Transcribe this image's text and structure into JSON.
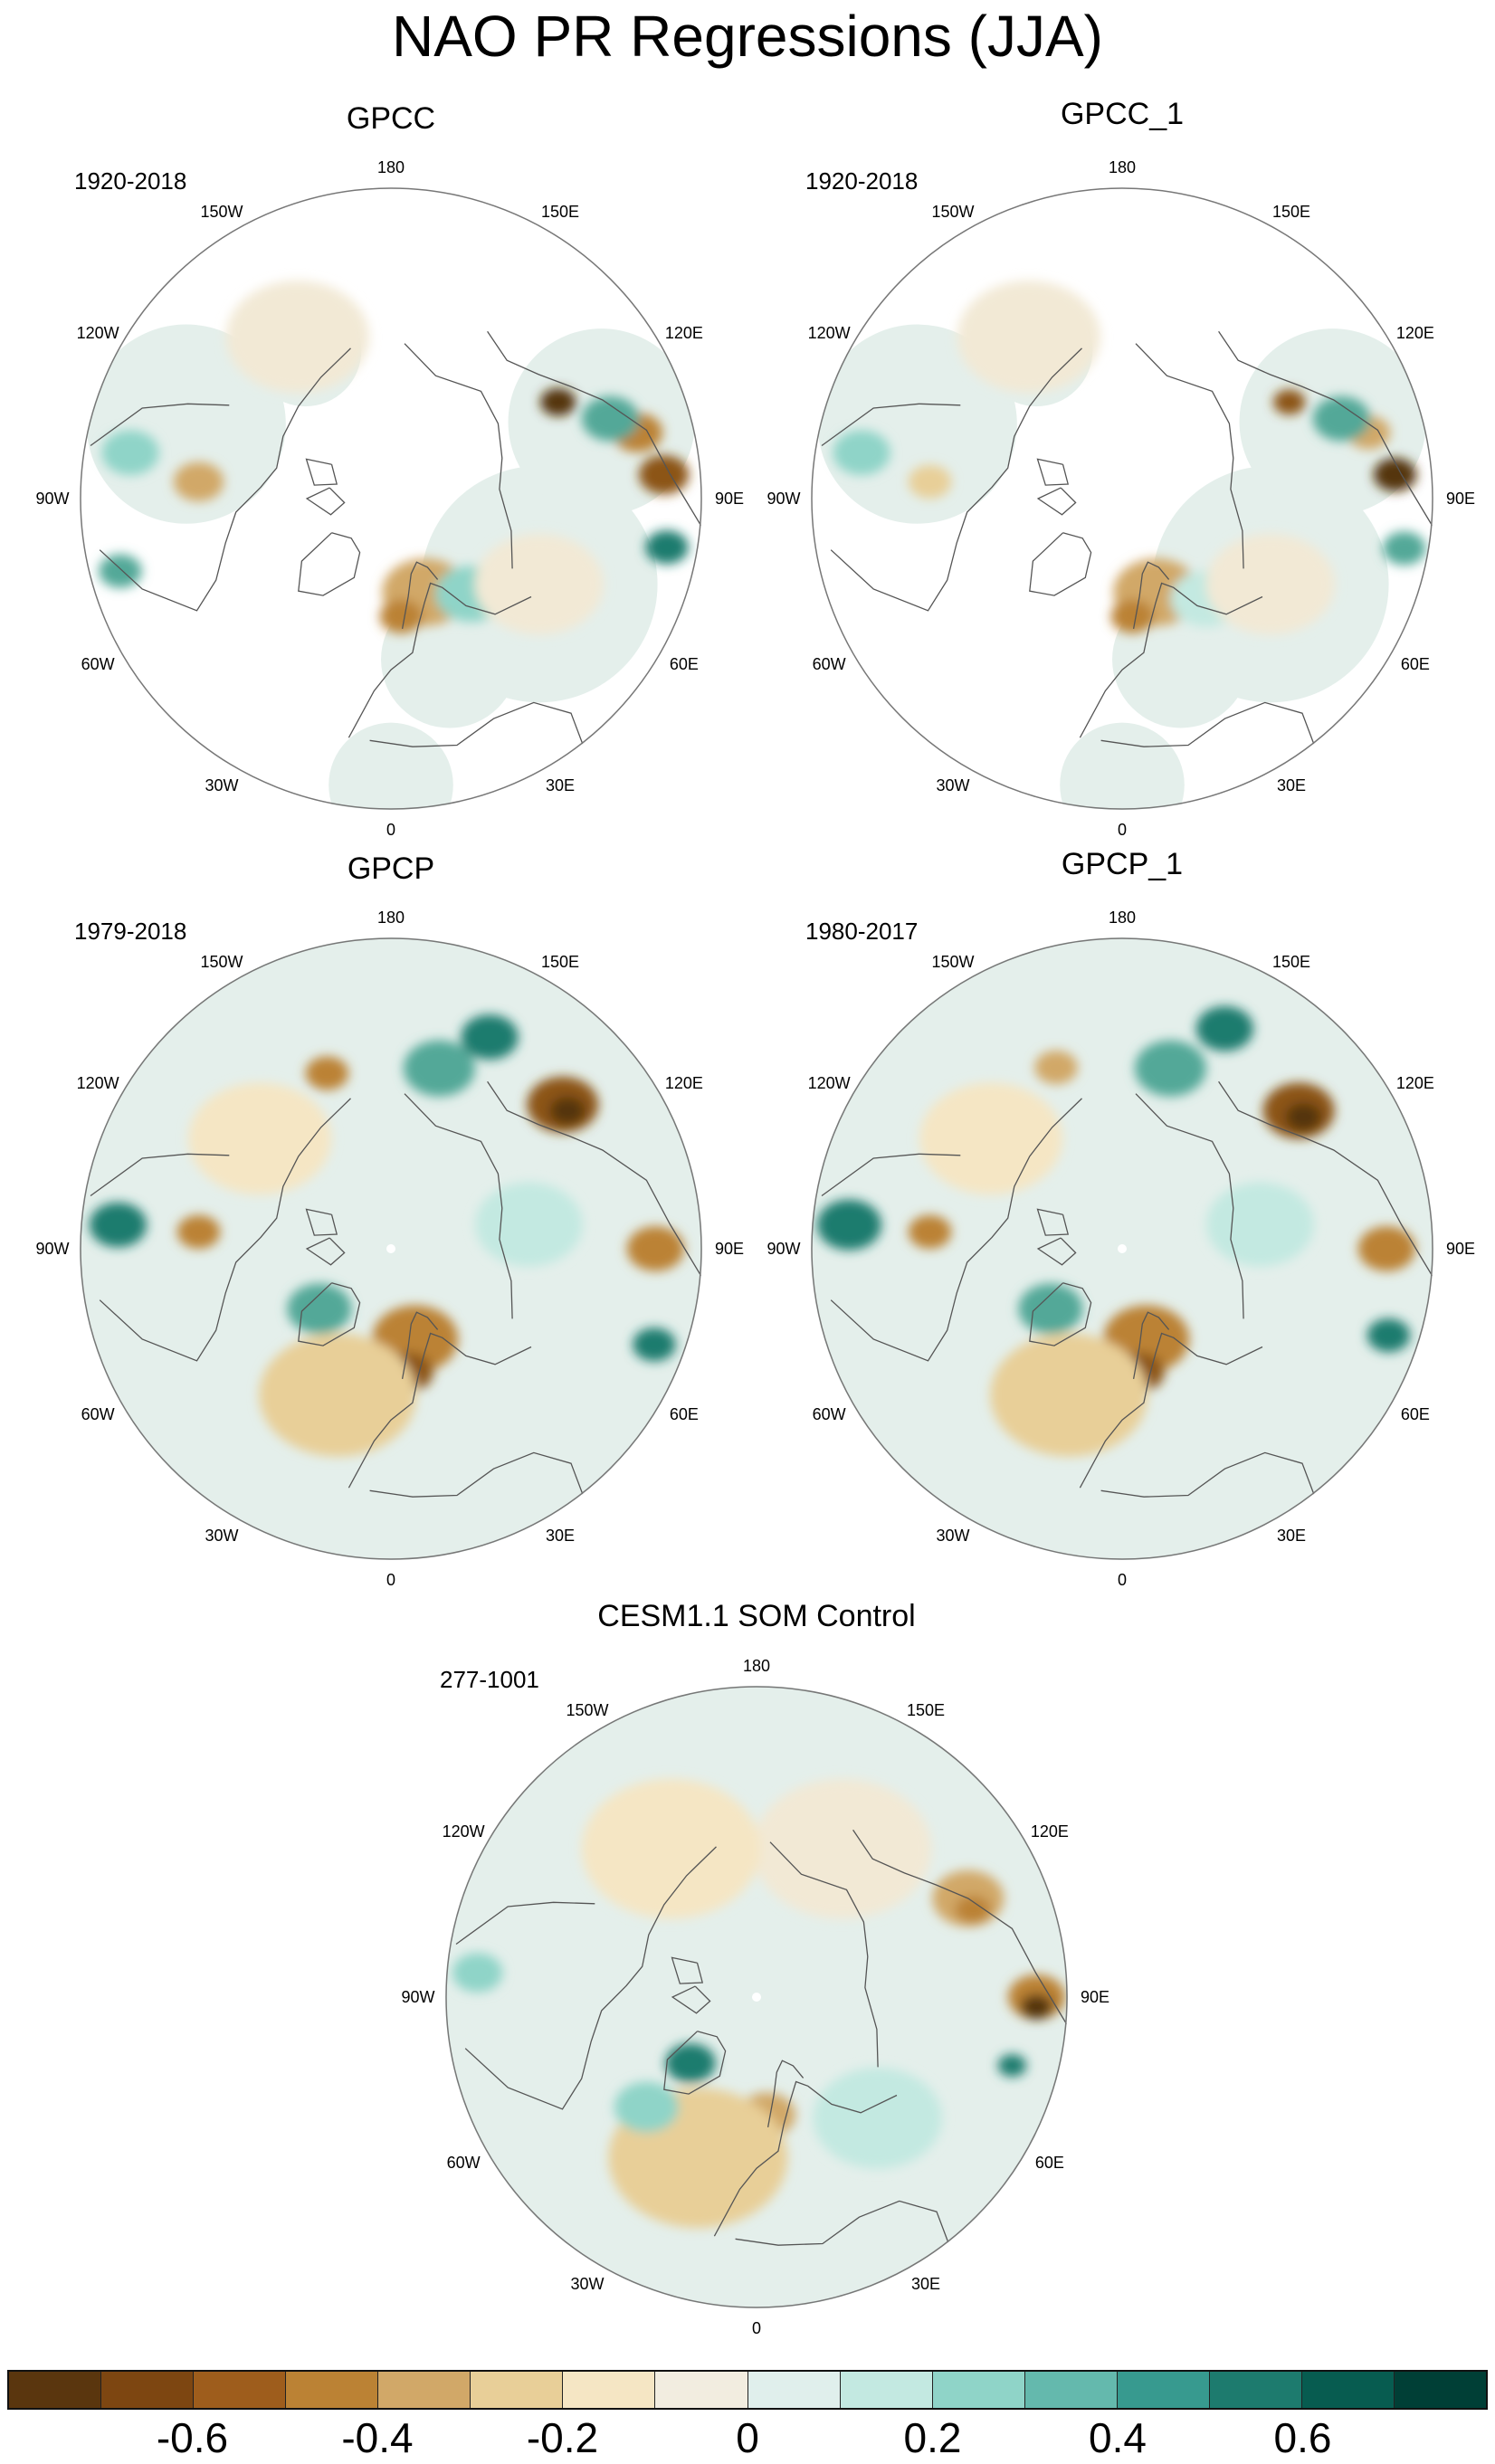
{
  "title": "NAO PR Regressions (JJA)",
  "lon_labels": [
    "180",
    "150E",
    "120E",
    "90E",
    "60E",
    "30E",
    "0",
    "30W",
    "60W",
    "90W",
    "120W",
    "150W"
  ],
  "panels": [
    {
      "title": "GPCC",
      "period": "1920-2018",
      "blobs": [
        {
          "lon": 120,
          "colat": 0.62,
          "r": 0.05,
          "color": "#553411"
        },
        {
          "lon": 95,
          "colat": 0.88,
          "r": 0.07,
          "color": "#8c5418"
        },
        {
          "lon": 105,
          "colat": 0.82,
          "r": 0.07,
          "color": "#bb8234"
        },
        {
          "lon": 110,
          "colat": 0.75,
          "r": 0.08,
          "color": "#52a898"
        },
        {
          "lon": 80,
          "colat": 0.9,
          "r": 0.06,
          "color": "#1d7b6e"
        },
        {
          "lon": 20,
          "colat": 0.32,
          "r": 0.12,
          "color": "#d1a868"
        },
        {
          "lon": 5,
          "colat": 0.38,
          "r": 0.06,
          "color": "#bb8234"
        },
        {
          "lon": 40,
          "colat": 0.4,
          "r": 0.1,
          "color": "#8fd4c8"
        },
        {
          "lon": -95,
          "colat": 0.62,
          "r": 0.07,
          "color": "#d1a868"
        },
        {
          "lon": -100,
          "colat": 0.85,
          "r": 0.08,
          "color": "#8fd4c8"
        },
        {
          "lon": -75,
          "colat": 0.9,
          "r": 0.06,
          "color": "#52a898"
        },
        {
          "lon": 60,
          "colat": 0.55,
          "r": 0.18,
          "color": "#f2e9d5"
        },
        {
          "lon": -150,
          "colat": 0.6,
          "r": 0.2,
          "color": "#f2e9d5"
        }
      ],
      "blank": true
    },
    {
      "title": "GPCC_1",
      "period": "1920-2018",
      "blobs": [
        {
          "lon": 120,
          "colat": 0.62,
          "r": 0.045,
          "color": "#8c5418"
        },
        {
          "lon": 95,
          "colat": 0.88,
          "r": 0.06,
          "color": "#553411"
        },
        {
          "lon": 105,
          "colat": 0.82,
          "r": 0.06,
          "color": "#d1a868"
        },
        {
          "lon": 110,
          "colat": 0.75,
          "r": 0.08,
          "color": "#52a898"
        },
        {
          "lon": 80,
          "colat": 0.92,
          "r": 0.06,
          "color": "#52a898"
        },
        {
          "lon": 20,
          "colat": 0.32,
          "r": 0.12,
          "color": "#d1a868"
        },
        {
          "lon": 5,
          "colat": 0.38,
          "r": 0.06,
          "color": "#bb8234"
        },
        {
          "lon": 40,
          "colat": 0.42,
          "r": 0.1,
          "color": "#c3e9e1"
        },
        {
          "lon": -95,
          "colat": 0.62,
          "r": 0.06,
          "color": "#e8cf98"
        },
        {
          "lon": -100,
          "colat": 0.85,
          "r": 0.08,
          "color": "#8fd4c8"
        },
        {
          "lon": 60,
          "colat": 0.55,
          "r": 0.18,
          "color": "#f2e9d5"
        },
        {
          "lon": -150,
          "colat": 0.6,
          "r": 0.2,
          "color": "#f2e9d5"
        }
      ],
      "blank": true
    },
    {
      "title": "GPCP",
      "period": "1979-2018",
      "blobs": [
        {
          "lon": 130,
          "colat": 0.72,
          "r": 0.1,
          "color": "#8c5418"
        },
        {
          "lon": 128,
          "colat": 0.72,
          "r": 0.05,
          "color": "#553411"
        },
        {
          "lon": 165,
          "colat": 0.6,
          "r": 0.1,
          "color": "#52a898"
        },
        {
          "lon": 155,
          "colat": 0.75,
          "r": 0.08,
          "color": "#1d7b6e"
        },
        {
          "lon": 90,
          "colat": 0.85,
          "r": 0.08,
          "color": "#bb8234"
        },
        {
          "lon": 70,
          "colat": 0.9,
          "r": 0.06,
          "color": "#1d7b6e"
        },
        {
          "lon": 15,
          "colat": 0.3,
          "r": 0.12,
          "color": "#bb8234"
        },
        {
          "lon": 8,
          "colat": 0.4,
          "r": 0.07,
          "color": "#8c5418"
        },
        {
          "lon": -20,
          "colat": 0.5,
          "r": 0.22,
          "color": "#e8cf98"
        },
        {
          "lon": -50,
          "colat": 0.3,
          "r": 0.09,
          "color": "#52a898"
        },
        {
          "lon": -95,
          "colat": 0.62,
          "r": 0.06,
          "color": "#bb8234"
        },
        {
          "lon": -95,
          "colat": 0.88,
          "r": 0.08,
          "color": "#1d7b6e"
        },
        {
          "lon": -160,
          "colat": 0.6,
          "r": 0.06,
          "color": "#bb8234"
        },
        {
          "lon": 100,
          "colat": 0.45,
          "r": 0.15,
          "color": "#c3e9e1"
        },
        {
          "lon": -130,
          "colat": 0.55,
          "r": 0.2,
          "color": "#f5e6c4"
        }
      ],
      "blank": false
    },
    {
      "title": "GPCP_1",
      "period": "1980-2017",
      "blobs": [
        {
          "lon": 128,
          "colat": 0.72,
          "r": 0.1,
          "color": "#8c5418"
        },
        {
          "lon": 126,
          "colat": 0.72,
          "r": 0.05,
          "color": "#553411"
        },
        {
          "lon": 165,
          "colat": 0.6,
          "r": 0.1,
          "color": "#52a898"
        },
        {
          "lon": 155,
          "colat": 0.78,
          "r": 0.08,
          "color": "#1d7b6e"
        },
        {
          "lon": 90,
          "colat": 0.85,
          "r": 0.08,
          "color": "#bb8234"
        },
        {
          "lon": 72,
          "colat": 0.9,
          "r": 0.06,
          "color": "#1d7b6e"
        },
        {
          "lon": 15,
          "colat": 0.3,
          "r": 0.12,
          "color": "#bb8234"
        },
        {
          "lon": 8,
          "colat": 0.4,
          "r": 0.07,
          "color": "#8c5418"
        },
        {
          "lon": -20,
          "colat": 0.5,
          "r": 0.22,
          "color": "#e8cf98"
        },
        {
          "lon": -50,
          "colat": 0.3,
          "r": 0.09,
          "color": "#52a898"
        },
        {
          "lon": -95,
          "colat": 0.62,
          "r": 0.06,
          "color": "#bb8234"
        },
        {
          "lon": -95,
          "colat": 0.88,
          "r": 0.09,
          "color": "#1d7b6e"
        },
        {
          "lon": -160,
          "colat": 0.62,
          "r": 0.06,
          "color": "#d1a868"
        },
        {
          "lon": 100,
          "colat": 0.45,
          "r": 0.15,
          "color": "#c3e9e1"
        },
        {
          "lon": -130,
          "colat": 0.55,
          "r": 0.2,
          "color": "#f5e6c4"
        }
      ],
      "blank": false
    },
    {
      "title": "CESM1.1 SOM Control",
      "period": "277-1001",
      "blobs": [
        {
          "lon": 115,
          "colat": 0.75,
          "r": 0.1,
          "color": "#d1a868"
        },
        {
          "lon": 112,
          "colat": 0.75,
          "r": 0.05,
          "color": "#bb8234"
        },
        {
          "lon": 90,
          "colat": 0.9,
          "r": 0.08,
          "color": "#bb8234"
        },
        {
          "lon": 88,
          "colat": 0.9,
          "r": 0.045,
          "color": "#553411"
        },
        {
          "lon": 75,
          "colat": 0.85,
          "r": 0.04,
          "color": "#1d7b6e"
        },
        {
          "lon": 5,
          "colat": 0.38,
          "r": 0.08,
          "color": "#d1a868"
        },
        {
          "lon": -20,
          "colat": 0.55,
          "r": 0.25,
          "color": "#e8cf98"
        },
        {
          "lon": -45,
          "colat": 0.3,
          "r": 0.07,
          "color": "#1d7b6e"
        },
        {
          "lon": -45,
          "colat": 0.5,
          "r": 0.09,
          "color": "#8fd4c8"
        },
        {
          "lon": -95,
          "colat": 0.9,
          "r": 0.07,
          "color": "#8fd4c8"
        },
        {
          "lon": 150,
          "colat": 0.55,
          "r": 0.25,
          "color": "#f2e9d5"
        },
        {
          "lon": -150,
          "colat": 0.55,
          "r": 0.25,
          "color": "#f5e6c4"
        },
        {
          "lon": 45,
          "colat": 0.55,
          "r": 0.18,
          "color": "#c3e9e1"
        }
      ],
      "blank": false
    }
  ],
  "colorbar": {
    "colors": [
      "#5a360e",
      "#7d4611",
      "#9e5d1c",
      "#bb8234",
      "#d1a868",
      "#e8cf98",
      "#f5e6c4",
      "#f2ede0",
      "#e0efec",
      "#c3e9e1",
      "#8fd4c8",
      "#64b9ad",
      "#379a8f",
      "#1d7b6e",
      "#075c50",
      "#003f36"
    ],
    "ticks": [
      "-0.6",
      "-0.4",
      "-0.2",
      "0",
      "0.2",
      "0.4",
      "0.6"
    ],
    "tick_values": [
      -0.6,
      -0.4,
      -0.2,
      0,
      0.2,
      0.4,
      0.6
    ],
    "range": [
      -0.8,
      0.8
    ]
  },
  "colors": {
    "land_outline": "#555555",
    "circle_outline": "#777777",
    "base_ocean": "#e4efeb",
    "base_land": "#f2e9d5",
    "missing": "#ffffff"
  }
}
